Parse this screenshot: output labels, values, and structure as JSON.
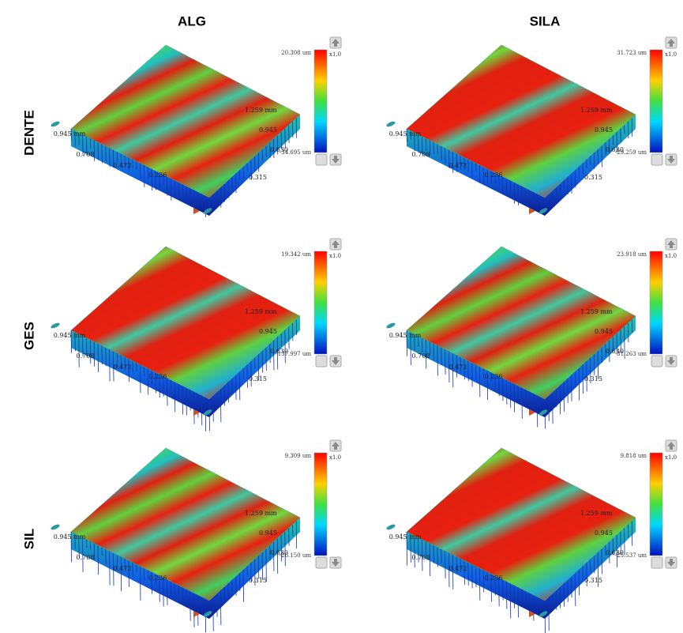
{
  "columns": [
    "ALG",
    "SILA"
  ],
  "rows": [
    "DENTE",
    "GES",
    "SIL"
  ],
  "zoom": "x1.0",
  "depth_ticks": [
    "1.259 mm",
    "0.945",
    "0.630",
    "0.315"
  ],
  "width_ticks": [
    "0.945 mm",
    "0.708",
    "0.472",
    "0.236"
  ],
  "panels": [
    [
      {
        "scale_max": "20.308 um",
        "scale_min": "-34.695 um"
      },
      {
        "scale_max": "31.723 um",
        "scale_min": "-29.259 um"
      }
    ],
    [
      {
        "scale_max": "19.342 um",
        "scale_min": "-137.997 um"
      },
      {
        "scale_max": "23.918 um",
        "scale_min": "-81.263 um"
      }
    ],
    [
      {
        "scale_max": "9.309 um",
        "scale_min": "-26.150 um"
      },
      {
        "scale_max": "9.818 um",
        "scale_min": "-25.537 um"
      }
    ]
  ]
}
